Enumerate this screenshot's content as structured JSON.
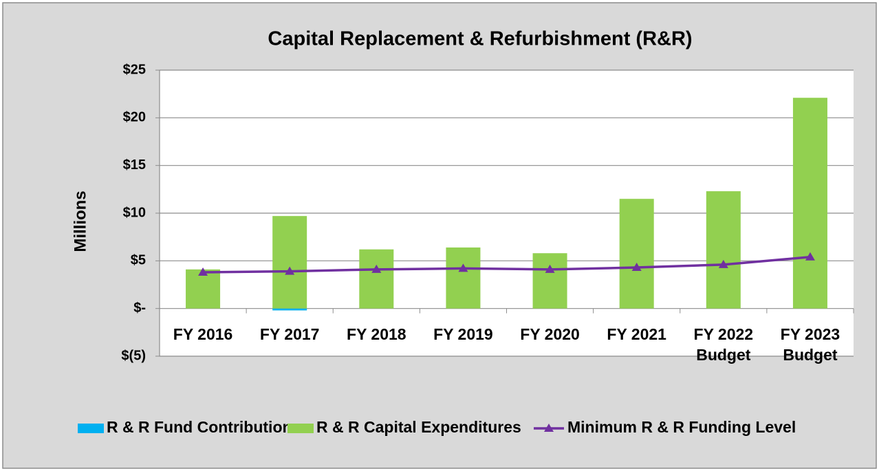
{
  "chart_data": {
    "type": "bar",
    "title": "Capital Replacement & Refurbishment (R&R)",
    "y_label": "Millions",
    "categories": [
      "FY 2016",
      "FY 2017",
      "FY 2018",
      "FY 2019",
      "FY 2020",
      "FY 2021",
      "FY 2022\nBudget",
      "FY 2023\nBudget"
    ],
    "series": [
      {
        "name": "R & R Fund Contribution",
        "color": "#00b0f0",
        "kind": "bar",
        "values": [
          0,
          -0.2,
          0,
          0,
          0,
          0,
          0,
          0
        ]
      },
      {
        "name": "R & R Capital Expenditures",
        "color": "#92d050",
        "kind": "bar",
        "values": [
          4.1,
          9.7,
          6.2,
          6.4,
          5.8,
          11.5,
          12.3,
          22.1
        ]
      },
      {
        "name": "Minimum R & R Funding Level",
        "color": "#7030a0",
        "kind": "line",
        "values": [
          3.8,
          3.9,
          4.1,
          4.2,
          4.1,
          4.3,
          4.6,
          5.4
        ]
      }
    ],
    "ylim": [
      -5,
      25
    ],
    "yticks": [
      {
        "value": -5,
        "label": "$(5)"
      },
      {
        "value": 0,
        "label": "$-"
      },
      {
        "value": 5,
        "label": "$5"
      },
      {
        "value": 10,
        "label": "$10"
      },
      {
        "value": 15,
        "label": "$15"
      },
      {
        "value": 20,
        "label": "$20"
      },
      {
        "value": 25,
        "label": "$25"
      }
    ],
    "grid": true,
    "stacked": true,
    "legend": "bottom"
  }
}
